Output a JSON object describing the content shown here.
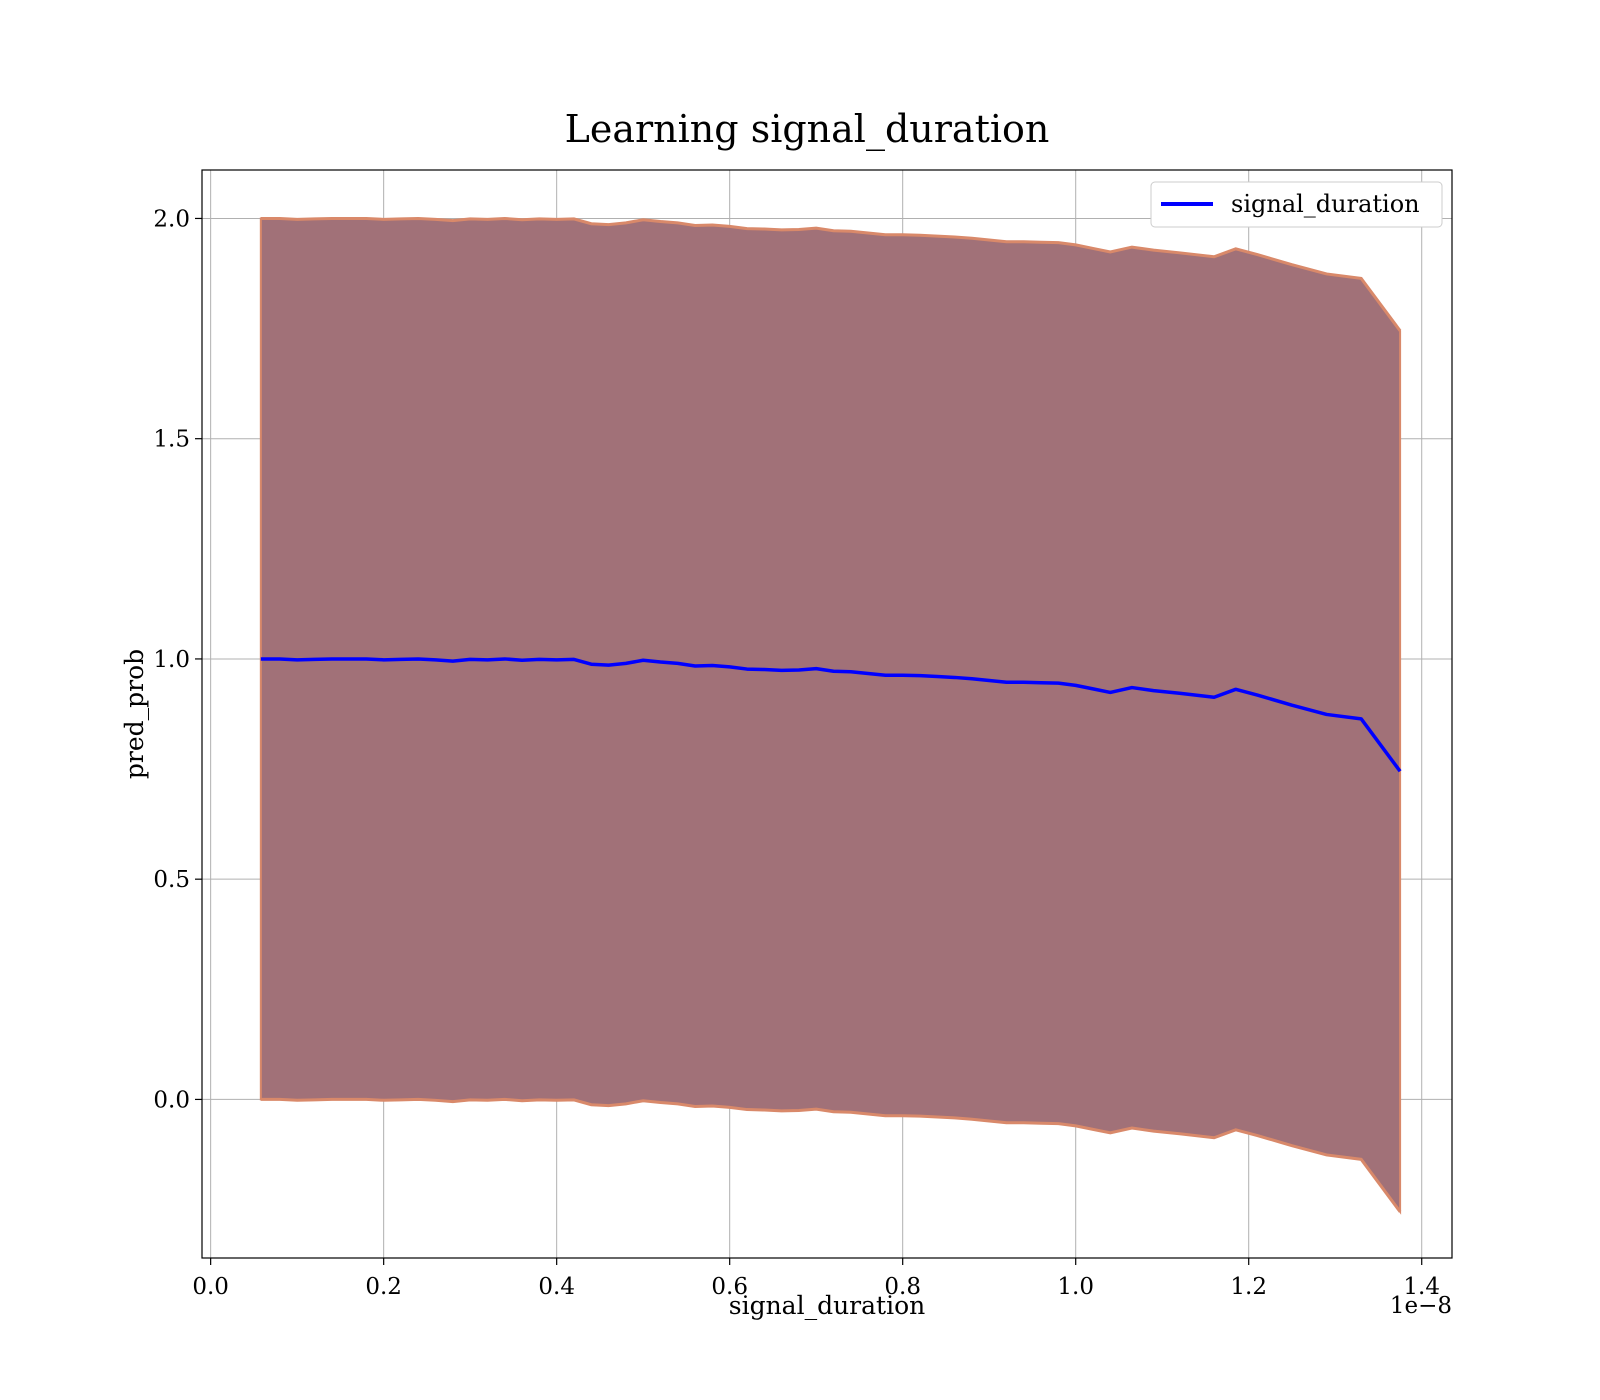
{
  "chart_data": {
    "type": "line",
    "title": "Learning signal_duration",
    "xlabel": "signal_duration",
    "ylabel": "pred_prob",
    "x_offset_label": "1e−8",
    "xlim": [
      -0.01,
      1.435
    ],
    "ylim": [
      -0.36,
      2.11
    ],
    "xticks": [
      0.0,
      0.2,
      0.4,
      0.6,
      0.8,
      1.0,
      1.2,
      1.4
    ],
    "xtick_labels": [
      "0.0",
      "0.2",
      "0.4",
      "0.6",
      "0.8",
      "1.0",
      "1.2",
      "1.4"
    ],
    "yticks": [
      0.0,
      0.5,
      1.0,
      1.5,
      2.0
    ],
    "ytick_labels": [
      "0.0",
      "0.5",
      "1.0",
      "1.5",
      "2.0"
    ],
    "grid": true,
    "legend_placement": "top-right",
    "colors": {
      "line": "#0000ff",
      "band_fill": "#a17178",
      "band_edge": "#d9896a"
    },
    "series": [
      {
        "name": "signal_duration",
        "x": [
          0.058,
          0.08,
          0.1,
          0.12,
          0.14,
          0.16,
          0.18,
          0.2,
          0.22,
          0.24,
          0.26,
          0.28,
          0.3,
          0.32,
          0.34,
          0.36,
          0.38,
          0.4,
          0.42,
          0.44,
          0.46,
          0.48,
          0.5,
          0.52,
          0.54,
          0.56,
          0.58,
          0.6,
          0.62,
          0.64,
          0.66,
          0.68,
          0.7,
          0.72,
          0.74,
          0.76,
          0.78,
          0.8,
          0.82,
          0.84,
          0.86,
          0.88,
          0.9,
          0.92,
          0.94,
          0.96,
          0.98,
          1.0,
          1.02,
          1.04,
          1.065,
          1.09,
          1.12,
          1.16,
          1.185,
          1.21,
          1.25,
          1.29,
          1.33,
          1.375
        ],
        "y": [
          1.0,
          1.0,
          0.998,
          0.999,
          1.0,
          1.0,
          1.0,
          0.998,
          0.999,
          1.0,
          0.998,
          0.995,
          0.999,
          0.998,
          1.0,
          0.997,
          0.999,
          0.998,
          0.999,
          0.988,
          0.986,
          0.99,
          0.997,
          0.993,
          0.99,
          0.984,
          0.985,
          0.982,
          0.977,
          0.976,
          0.974,
          0.975,
          0.978,
          0.972,
          0.971,
          0.967,
          0.963,
          0.963,
          0.962,
          0.96,
          0.958,
          0.955,
          0.951,
          0.947,
          0.947,
          0.946,
          0.945,
          0.94,
          0.932,
          0.924,
          0.935,
          0.928,
          0.922,
          0.913,
          0.931,
          0.918,
          0.895,
          0.874,
          0.864,
          0.745
        ],
        "lower": [
          0.0,
          0.0,
          -0.002,
          -0.001,
          0.0,
          0.0,
          0.0,
          -0.002,
          -0.001,
          0.0,
          -0.002,
          -0.005,
          -0.001,
          -0.002,
          0.0,
          -0.003,
          -0.001,
          -0.002,
          -0.001,
          -0.012,
          -0.014,
          -0.01,
          -0.003,
          -0.007,
          -0.01,
          -0.016,
          -0.015,
          -0.018,
          -0.023,
          -0.024,
          -0.026,
          -0.025,
          -0.022,
          -0.028,
          -0.029,
          -0.033,
          -0.037,
          -0.037,
          -0.038,
          -0.04,
          -0.042,
          -0.045,
          -0.049,
          -0.053,
          -0.053,
          -0.054,
          -0.055,
          -0.06,
          -0.068,
          -0.076,
          -0.065,
          -0.072,
          -0.078,
          -0.087,
          -0.069,
          -0.082,
          -0.105,
          -0.126,
          -0.136,
          -0.255
        ],
        "upper": [
          2.0,
          2.0,
          1.998,
          1.999,
          2.0,
          2.0,
          2.0,
          1.998,
          1.999,
          2.0,
          1.998,
          1.995,
          1.999,
          1.998,
          2.0,
          1.997,
          1.999,
          1.998,
          1.999,
          1.988,
          1.986,
          1.99,
          1.997,
          1.993,
          1.99,
          1.984,
          1.985,
          1.982,
          1.977,
          1.976,
          1.974,
          1.975,
          1.978,
          1.972,
          1.971,
          1.967,
          1.963,
          1.963,
          1.962,
          1.96,
          1.958,
          1.955,
          1.951,
          1.947,
          1.947,
          1.946,
          1.945,
          1.94,
          1.932,
          1.924,
          1.935,
          1.928,
          1.922,
          1.913,
          1.931,
          1.918,
          1.895,
          1.874,
          1.864,
          1.745
        ]
      }
    ]
  }
}
